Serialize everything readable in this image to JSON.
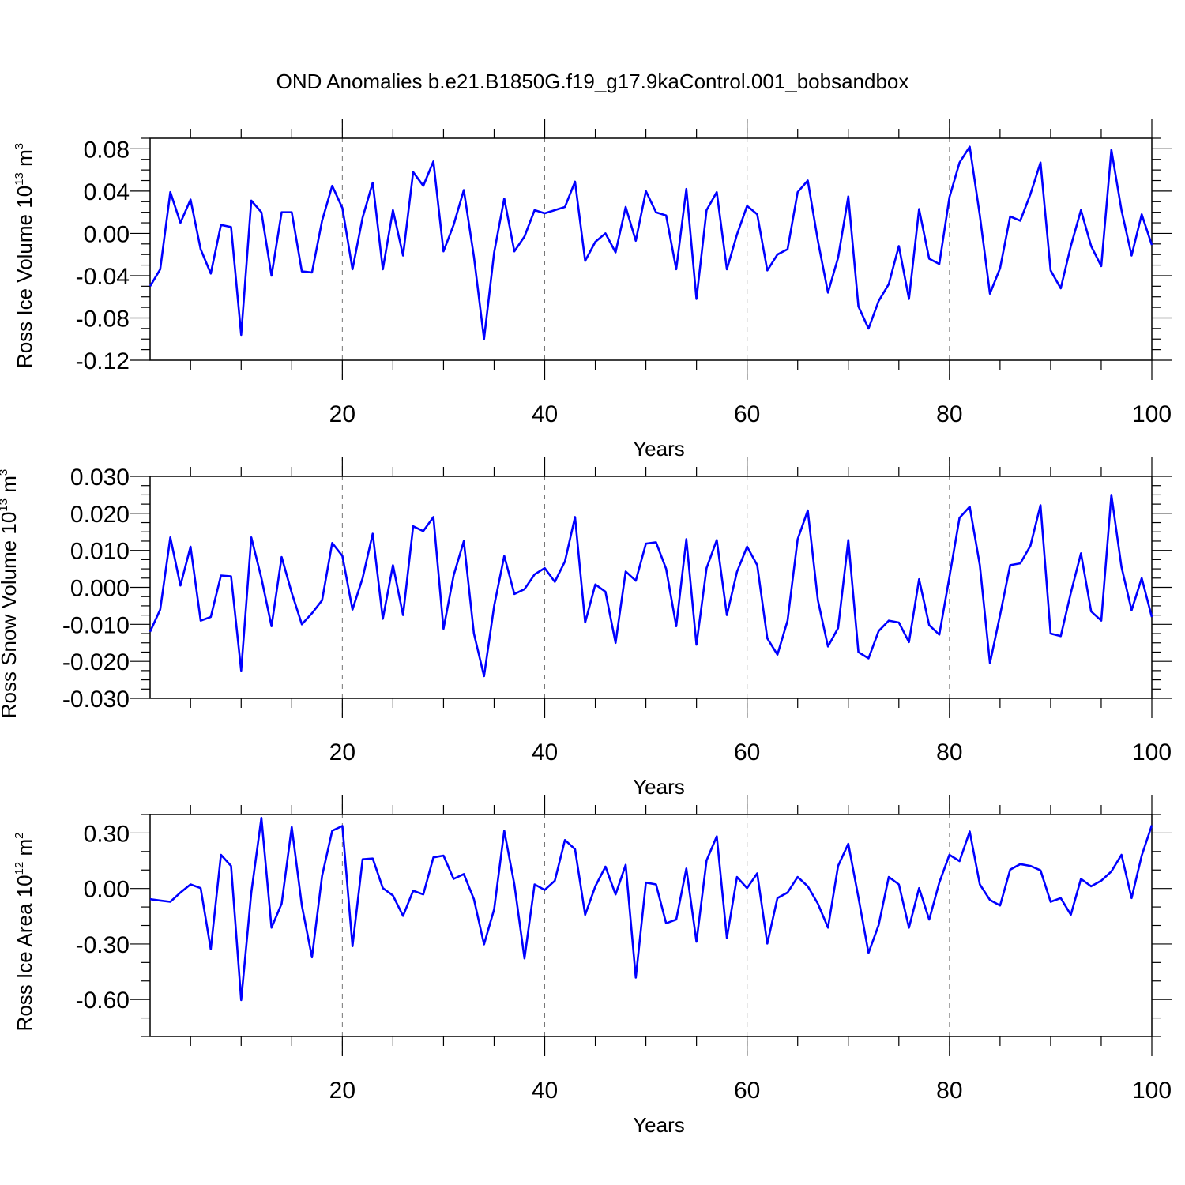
{
  "title": "OND Anomalies b.e21.B1850G.f19_g17.9kaControl.001_bobsandbox",
  "line_color": "#0000ff",
  "chart_data": [
    {
      "type": "line",
      "ylabel": "Ross Ice Volume",
      "yunit_base": "10",
      "yunit_exp": "13",
      "yunit_tail": " m",
      "yunit_tail_exp": "3",
      "xlabel": "Years",
      "xlim": [
        1,
        100
      ],
      "ylim": [
        -0.12,
        0.09
      ],
      "yticks": [
        -0.12,
        -0.08,
        -0.04,
        0.0,
        0.04,
        0.08
      ],
      "ytick_labels": [
        "-0.12",
        "-0.08",
        "-0.04",
        "0.00",
        "0.04",
        "0.08"
      ],
      "ytick_minor_step": 0.01,
      "xticks": [
        20,
        40,
        60,
        80,
        100
      ],
      "xtick_labels": [
        "20",
        "40",
        "60",
        "80",
        "100"
      ],
      "xtick_minor_step": 5,
      "grid_x": [
        20,
        40,
        60,
        80
      ],
      "series": [
        {
          "values": [
            -0.05,
            -0.034,
            0.039,
            0.01,
            0.032,
            -0.015,
            -0.038,
            0.008,
            0.006,
            -0.096,
            0.031,
            0.02,
            -0.04,
            0.02,
            0.02,
            -0.036,
            -0.037,
            0.012,
            0.045,
            0.024,
            -0.034,
            0.015,
            0.048,
            -0.034,
            0.022,
            -0.021,
            0.058,
            0.045,
            0.068,
            -0.017,
            0.008,
            0.041,
            -0.022,
            -0.1,
            -0.018,
            0.033,
            -0.017,
            -0.003,
            0.022,
            0.019,
            0.022,
            0.025,
            0.049,
            -0.026,
            -0.008,
            0.0,
            -0.018,
            0.025,
            -0.007,
            0.04,
            0.02,
            0.017,
            -0.034,
            0.042,
            -0.062,
            0.022,
            0.039,
            -0.034,
            -0.001,
            0.026,
            0.018,
            -0.035,
            -0.02,
            -0.015,
            0.039,
            0.05,
            -0.007,
            -0.056,
            -0.023,
            0.035,
            -0.069,
            -0.09,
            -0.064,
            -0.048,
            -0.012,
            -0.062,
            0.023,
            -0.024,
            -0.029,
            0.034,
            0.067,
            0.082,
            0.017,
            -0.057,
            -0.033,
            0.016,
            0.012,
            0.037,
            0.067,
            -0.035,
            -0.052,
            -0.012,
            0.022,
            -0.012,
            -0.031,
            0.079,
            0.022,
            -0.021,
            0.018,
            -0.011
          ]
        }
      ]
    },
    {
      "type": "line",
      "ylabel": "Ross Snow Volume",
      "yunit_base": "10",
      "yunit_exp": "13",
      "yunit_tail": " m",
      "yunit_tail_exp": "3",
      "xlabel": "Years",
      "xlim": [
        1,
        100
      ],
      "ylim": [
        -0.03,
        0.03
      ],
      "yticks": [
        -0.03,
        -0.02,
        -0.01,
        0.0,
        0.01,
        0.02,
        0.03
      ],
      "ytick_labels": [
        "-0.030",
        "-0.020",
        "-0.010",
        "0.000",
        "0.010",
        "0.020",
        "0.030"
      ],
      "ytick_minor_step": 0.0025,
      "xticks": [
        20,
        40,
        60,
        80,
        100
      ],
      "xtick_labels": [
        "20",
        "40",
        "60",
        "80",
        "100"
      ],
      "xtick_minor_step": 5,
      "grid_x": [
        20,
        40,
        60,
        80
      ],
      "series": [
        {
          "values": [
            -0.012,
            -0.006,
            0.0135,
            0.0005,
            0.011,
            -0.009,
            -0.008,
            0.0032,
            0.003,
            -0.0225,
            0.0135,
            0.0025,
            -0.0105,
            0.0082,
            -0.0015,
            -0.01,
            -0.007,
            -0.0035,
            0.012,
            0.0085,
            -0.006,
            0.0025,
            0.0145,
            -0.0085,
            0.006,
            -0.0075,
            0.0165,
            0.0152,
            0.019,
            -0.0112,
            0.0032,
            0.0125,
            -0.0125,
            -0.024,
            -0.005,
            0.0085,
            -0.0018,
            -0.0005,
            0.0035,
            0.0052,
            0.0015,
            0.007,
            0.019,
            -0.0095,
            0.0008,
            -0.0012,
            -0.015,
            0.0043,
            0.0018,
            0.0118,
            0.0122,
            0.005,
            -0.0105,
            0.013,
            -0.0155,
            0.0052,
            0.0128,
            -0.0075,
            0.0042,
            0.011,
            0.006,
            -0.0138,
            -0.0182,
            -0.009,
            0.013,
            0.0208,
            -0.0035,
            -0.016,
            -0.011,
            0.0128,
            -0.0175,
            -0.0192,
            -0.0118,
            -0.009,
            -0.0095,
            -0.0148,
            0.0022,
            -0.0102,
            -0.0128,
            0.0028,
            0.0188,
            0.0218,
            0.006,
            -0.0205,
            -0.0075,
            0.006,
            0.0065,
            0.0112,
            0.0222,
            -0.0125,
            -0.0132,
            -0.0015,
            0.0092,
            -0.0065,
            -0.009,
            0.025,
            0.0055,
            -0.0062,
            0.0025,
            -0.008
          ]
        }
      ]
    },
    {
      "type": "line",
      "ylabel": "Ross Ice Area",
      "yunit_base": "10",
      "yunit_exp": "12",
      "yunit_tail": " m",
      "yunit_tail_exp": "2",
      "xlabel": "Years",
      "xlim": [
        1,
        100
      ],
      "ylim": [
        -0.8,
        0.4
      ],
      "yticks": [
        -0.6,
        -0.3,
        0.0,
        0.3
      ],
      "ytick_labels": [
        "-0.60",
        "-0.30",
        "0.00",
        "0.30"
      ],
      "ytick_minor_step": 0.1,
      "xticks": [
        20,
        40,
        60,
        80,
        100
      ],
      "xtick_labels": [
        "20",
        "40",
        "60",
        "80",
        "100"
      ],
      "xtick_minor_step": 5,
      "grid_x": [
        20,
        40,
        60,
        80
      ],
      "series": [
        {
          "values": [
            -0.058,
            -0.065,
            -0.072,
            -0.022,
            0.022,
            0.002,
            -0.328,
            0.182,
            0.122,
            -0.603,
            -0.022,
            0.382,
            -0.212,
            -0.082,
            0.332,
            -0.092,
            -0.372,
            0.068,
            0.312,
            0.338,
            -0.312,
            0.158,
            0.162,
            0.002,
            -0.038,
            -0.148,
            -0.012,
            -0.032,
            0.168,
            0.178,
            0.052,
            0.078,
            -0.058,
            -0.302,
            -0.112,
            0.312,
            0.022,
            -0.378,
            0.022,
            -0.008,
            0.042,
            0.262,
            0.212,
            -0.142,
            0.012,
            0.118,
            -0.032,
            0.128,
            -0.482,
            0.032,
            0.022,
            -0.188,
            -0.168,
            0.108,
            -0.288,
            0.152,
            0.282,
            -0.268,
            0.062,
            0.002,
            0.082,
            -0.298,
            -0.052,
            -0.022,
            0.062,
            0.012,
            -0.082,
            -0.212,
            0.122,
            0.242,
            -0.048,
            -0.348,
            -0.198,
            0.062,
            0.022,
            -0.212,
            0.002,
            -0.168,
            0.032,
            0.182,
            0.148,
            0.308,
            0.022,
            -0.062,
            -0.092,
            0.102,
            0.132,
            0.122,
            0.098,
            -0.072,
            -0.052,
            -0.142,
            0.052,
            0.012,
            0.042,
            0.092,
            0.182,
            -0.052,
            0.178,
            0.342
          ]
        }
      ]
    }
  ]
}
